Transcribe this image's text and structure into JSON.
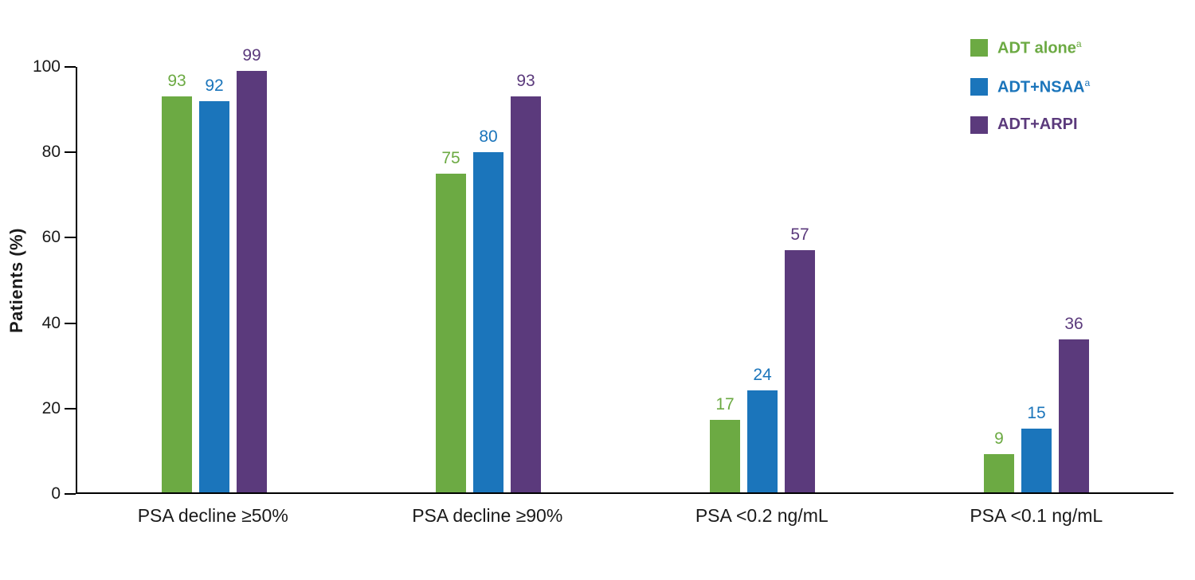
{
  "chart_data": {
    "type": "bar",
    "title": "",
    "xlabel": "",
    "ylabel": "Patients (%)",
    "ylim": [
      0,
      100
    ],
    "yticks": [
      0,
      20,
      40,
      60,
      80,
      100
    ],
    "grid": false,
    "legend_position": "top-right",
    "categories": [
      "PSA decline ≥50%",
      "PSA decline ≥90%",
      "PSA <0.2 ng/mL",
      "PSA <0.1 ng/mL"
    ],
    "series": [
      {
        "name": "ADT alone",
        "superscript": "a",
        "color": "#6caa43",
        "values": [
          93,
          75,
          17,
          9
        ]
      },
      {
        "name": "ADT+NSAA",
        "superscript": "a",
        "color": "#1b75bb",
        "values": [
          92,
          80,
          24,
          15
        ]
      },
      {
        "name": "ADT+ARPI",
        "superscript": "",
        "color": "#5b3a7c",
        "values": [
          99,
          93,
          57,
          36
        ]
      }
    ]
  }
}
